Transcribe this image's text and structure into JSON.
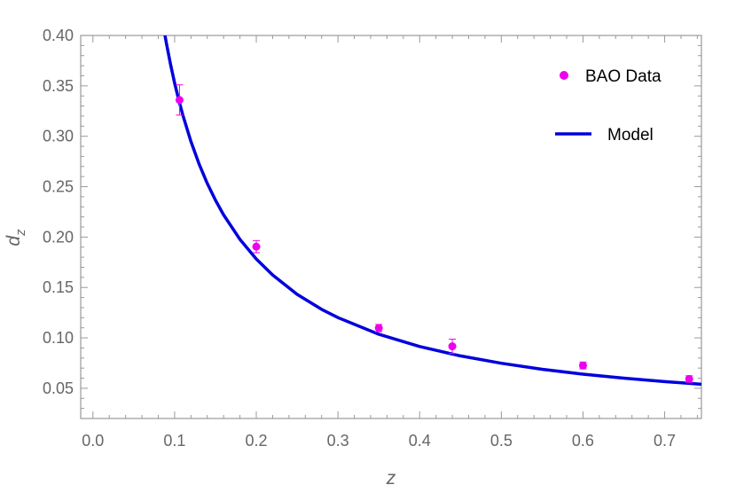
{
  "chart_data": {
    "type": "scatter",
    "xlabel": "z",
    "ylabel": "d",
    "ylabel_subscript": "z",
    "xlim": [
      -0.015,
      0.745
    ],
    "ylim": [
      0.02,
      0.4
    ],
    "x_ticks": [
      0.0,
      0.1,
      0.2,
      0.3,
      0.4,
      0.5,
      0.6,
      0.7
    ],
    "x_tick_labels": [
      "0.0",
      "0.1",
      "0.2",
      "0.3",
      "0.4",
      "0.5",
      "0.6",
      "0.7"
    ],
    "y_ticks": [
      0.05,
      0.1,
      0.15,
      0.2,
      0.25,
      0.3,
      0.35,
      0.4
    ],
    "y_tick_labels": [
      "0.05",
      "0.10",
      "0.15",
      "0.20",
      "0.25",
      "0.30",
      "0.35",
      "0.40"
    ],
    "grid": false,
    "legend_position": "top-right",
    "series": [
      {
        "name": "BAO Data",
        "kind": "points",
        "color": "#ee00ee",
        "points": [
          {
            "x": 0.106,
            "y": 0.336,
            "err": 0.015
          },
          {
            "x": 0.2,
            "y": 0.1905,
            "err": 0.006
          },
          {
            "x": 0.35,
            "y": 0.1097,
            "err": 0.0036
          },
          {
            "x": 0.44,
            "y": 0.0916,
            "err": 0.0071
          },
          {
            "x": 0.6,
            "y": 0.0726,
            "err": 0.0034
          },
          {
            "x": 0.73,
            "y": 0.0592,
            "err": 0.0032
          }
        ]
      },
      {
        "name": "Model",
        "kind": "curve",
        "color": "#0000dd",
        "x": [
          0.088,
          0.09,
          0.095,
          0.1,
          0.105,
          0.11,
          0.12,
          0.13,
          0.14,
          0.15,
          0.16,
          0.18,
          0.2,
          0.22,
          0.25,
          0.28,
          0.3,
          0.35,
          0.4,
          0.45,
          0.5,
          0.55,
          0.6,
          0.65,
          0.7,
          0.745
        ],
        "y": [
          0.401,
          0.392,
          0.3713,
          0.3528,
          0.3362,
          0.3212,
          0.2948,
          0.2724,
          0.2532,
          0.2366,
          0.222,
          0.1977,
          0.1782,
          0.1624,
          0.1431,
          0.1283,
          0.1201,
          0.1036,
          0.0914,
          0.0821,
          0.0748,
          0.0688,
          0.064,
          0.06,
          0.0566,
          0.054
        ]
      }
    ]
  }
}
